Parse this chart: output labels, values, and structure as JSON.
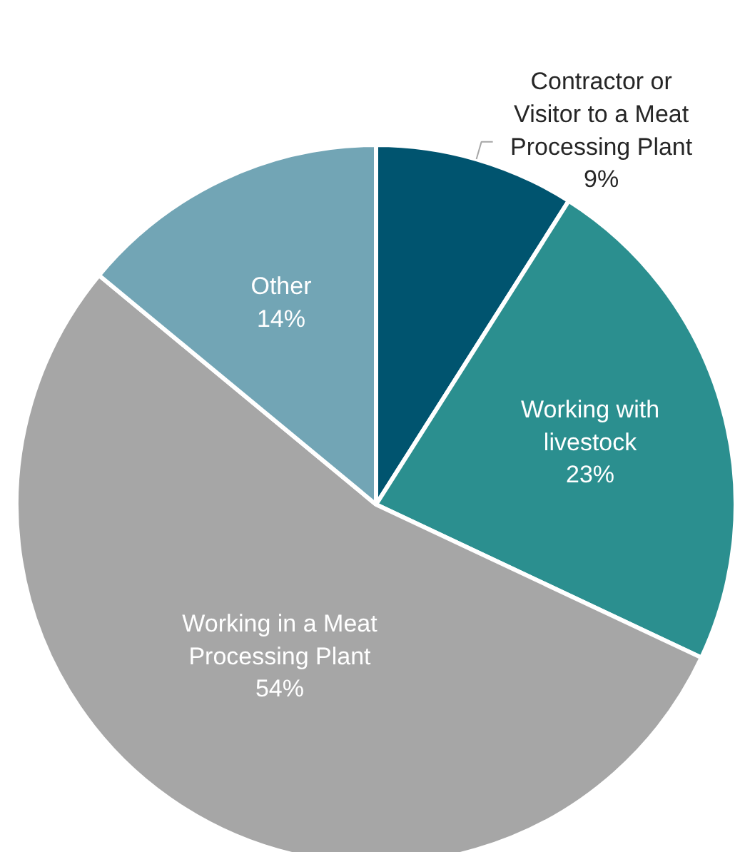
{
  "chart_data": {
    "type": "pie",
    "categories": [
      "Contractor or Visitor to a Meat Processing Plant",
      "Working with livestock",
      "Working in a Meat Processing Plant",
      "Other"
    ],
    "values": [
      9,
      23,
      54,
      14
    ],
    "value_labels": [
      "9%",
      "23%",
      "54%",
      "14%"
    ],
    "colors": [
      "#00546f",
      "#2b8f8f",
      "#a6a6a6",
      "#72a5b5"
    ]
  }
}
